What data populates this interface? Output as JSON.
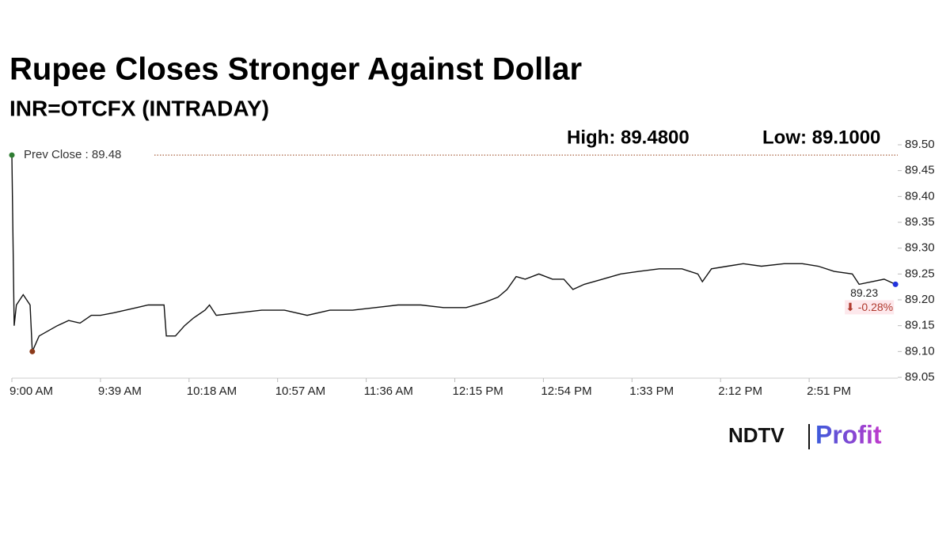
{
  "chart_data": {
    "type": "line",
    "title": "Rupee Closes Stronger Against Dollar",
    "subtitle": "INR=OTCFX (INTRADAY)",
    "high_label": "High: 89.4800",
    "low_label": "Low: 89.1000",
    "prev_close_label": "Prev Close : 89.48",
    "prev_close": 89.48,
    "end_label": "89.23",
    "change_label": "⬇ -0.28%",
    "x": [
      "9:00 AM",
      "9:01 AM",
      "9:02 AM",
      "9:05 AM",
      "9:08 AM",
      "9:09 AM",
      "9:12 AM",
      "9:16 AM",
      "9:20 AM",
      "9:25 AM",
      "9:30 AM",
      "9:35 AM",
      "9:39 AM",
      "9:45 AM",
      "9:50 AM",
      "9:55 AM",
      "10:00 AM",
      "10:07 AM",
      "10:08 AM",
      "10:12 AM",
      "10:16 AM",
      "10:20 AM",
      "10:25 AM",
      "10:27 AM",
      "10:30 AM",
      "10:40 AM",
      "10:50 AM",
      "11:00 AM",
      "11:10 AM",
      "11:20 AM",
      "11:30 AM",
      "11:40 AM",
      "11:50 AM",
      "12:00 PM",
      "12:10 PM",
      "12:20 PM",
      "12:28 PM",
      "12:34 PM",
      "12:38 PM",
      "12:42 PM",
      "12:46 PM",
      "12:52 PM",
      "12:58 PM",
      "1:03 PM",
      "1:07 PM",
      "1:12 PM",
      "1:20 PM",
      "1:28 PM",
      "1:36 PM",
      "1:45 PM",
      "1:55 PM",
      "2:02 PM",
      "2:04 PM",
      "2:08 PM",
      "2:15 PM",
      "2:22 PM",
      "2:30 PM",
      "2:40 PM",
      "2:48 PM",
      "2:55 PM",
      "3:02 PM",
      "3:10 PM",
      "3:13 PM",
      "3:24 PM",
      "3:29 PM"
    ],
    "series": [
      {
        "name": "INR=OTCFX",
        "color": "#111111",
        "values": [
          89.48,
          89.15,
          89.19,
          89.21,
          89.19,
          89.1,
          89.13,
          89.14,
          89.15,
          89.16,
          89.155,
          89.17,
          89.17,
          89.175,
          89.18,
          89.185,
          89.19,
          89.19,
          89.13,
          89.13,
          89.15,
          89.165,
          89.18,
          89.19,
          89.17,
          89.175,
          89.18,
          89.18,
          89.17,
          89.18,
          89.18,
          89.185,
          89.19,
          89.19,
          89.185,
          89.185,
          89.195,
          89.205,
          89.22,
          89.245,
          89.24,
          89.25,
          89.24,
          89.24,
          89.22,
          89.23,
          89.24,
          89.25,
          89.255,
          89.26,
          89.26,
          89.25,
          89.235,
          89.26,
          89.265,
          89.27,
          89.265,
          89.27,
          89.27,
          89.265,
          89.255,
          89.25,
          89.23,
          89.24,
          89.23
        ]
      }
    ],
    "marker_colors": [
      "#2e7d32",
      "#8b3a1a",
      "#2233dd"
    ],
    "prev_close_color": "#a0522d",
    "xlim": [
      "9:00 AM",
      "3:30 PM"
    ],
    "xticks": [
      "9:00 AM",
      "9:39 AM",
      "10:18 AM",
      "10:57 AM",
      "11:36 AM",
      "12:15 PM",
      "12:54 PM",
      "1:33 PM",
      "2:12 PM",
      "2:51 PM"
    ],
    "ylim": [
      89.05,
      89.5
    ],
    "yticks": [
      {
        "value": 89.05,
        "label": "89.05"
      },
      {
        "value": 89.1,
        "label": "89.10"
      },
      {
        "value": 89.15,
        "label": "89.15"
      },
      {
        "value": 89.2,
        "label": "89.20"
      },
      {
        "value": 89.25,
        "label": "89.25"
      },
      {
        "value": 89.3,
        "label": "89.30"
      },
      {
        "value": 89.35,
        "label": "89.35"
      },
      {
        "value": 89.4,
        "label": "89.40"
      },
      {
        "value": 89.45,
        "label": "89.45"
      },
      {
        "value": 89.5,
        "label": "89.50"
      }
    ],
    "grid": false
  },
  "logo": {
    "left": "NDTV",
    "right": "Profit"
  }
}
